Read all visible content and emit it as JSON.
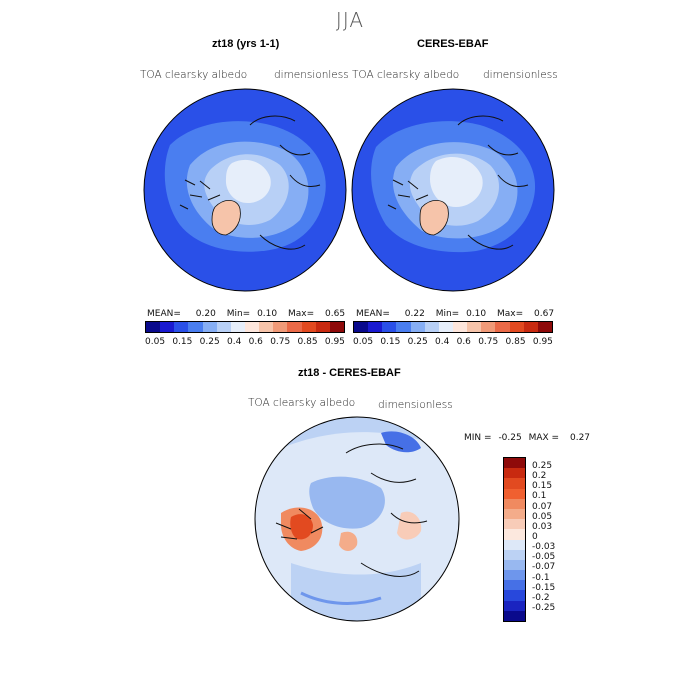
{
  "title": "JJA",
  "panels": [
    {
      "title": "zt18 (yrs 1-1)",
      "varname": "TOA clearsky albedo",
      "units": "dimensionless",
      "stats": {
        "mean_label": "MEAN=",
        "mean": "0.20",
        "min_label": "Min=",
        "min": "0.10",
        "max_label": "Max=",
        "max": "0.65"
      }
    },
    {
      "title": "CERES-EBAF",
      "varname": "TOA clearsky albedo",
      "units": "dimensionless",
      "stats": {
        "mean_label": "MEAN=",
        "mean": "0.22",
        "min_label": "Min=",
        "min": "0.10",
        "max_label": "Max=",
        "max": "0.67"
      }
    }
  ],
  "colorbar": {
    "labels": [
      "0.05",
      "0.15",
      "0.25",
      "0.4",
      "0.6",
      "0.75",
      "0.85",
      "0.95"
    ],
    "colors": [
      "#0a0a8c",
      "#1a1ad0",
      "#2a50e8",
      "#4a7ef0",
      "#86aef4",
      "#b8d0f6",
      "#e6eefa",
      "#fde6dc",
      "#f6c4aa",
      "#f09a78",
      "#ea6a48",
      "#e24a20",
      "#c82a10",
      "#8e0a0a"
    ]
  },
  "diff": {
    "title": "zt18 - CERES-EBAF",
    "varname": "TOA clearsky albedo",
    "units": "dimensionless",
    "min_label": "MIN =",
    "min": "-0.25",
    "max_label": "MAX =",
    "max": "0.27",
    "colorbar": {
      "labels": [
        "0.25",
        "0.2",
        "0.15",
        "0.1",
        "0.07",
        "0.05",
        "0.03",
        "0",
        "-0.03",
        "-0.05",
        "-0.07",
        "-0.1",
        "-0.15",
        "-0.2",
        "-0.25"
      ],
      "colors": [
        "#8e0a0a",
        "#c82a10",
        "#e24a20",
        "#f06030",
        "#f08a60",
        "#f4ac8a",
        "#f8ccb8",
        "#fce8de",
        "#dde8f8",
        "#bcd2f4",
        "#98b8f0",
        "#6e96ec",
        "#4670e6",
        "#2848dc",
        "#1a24c0",
        "#0a0a8c"
      ]
    }
  }
}
